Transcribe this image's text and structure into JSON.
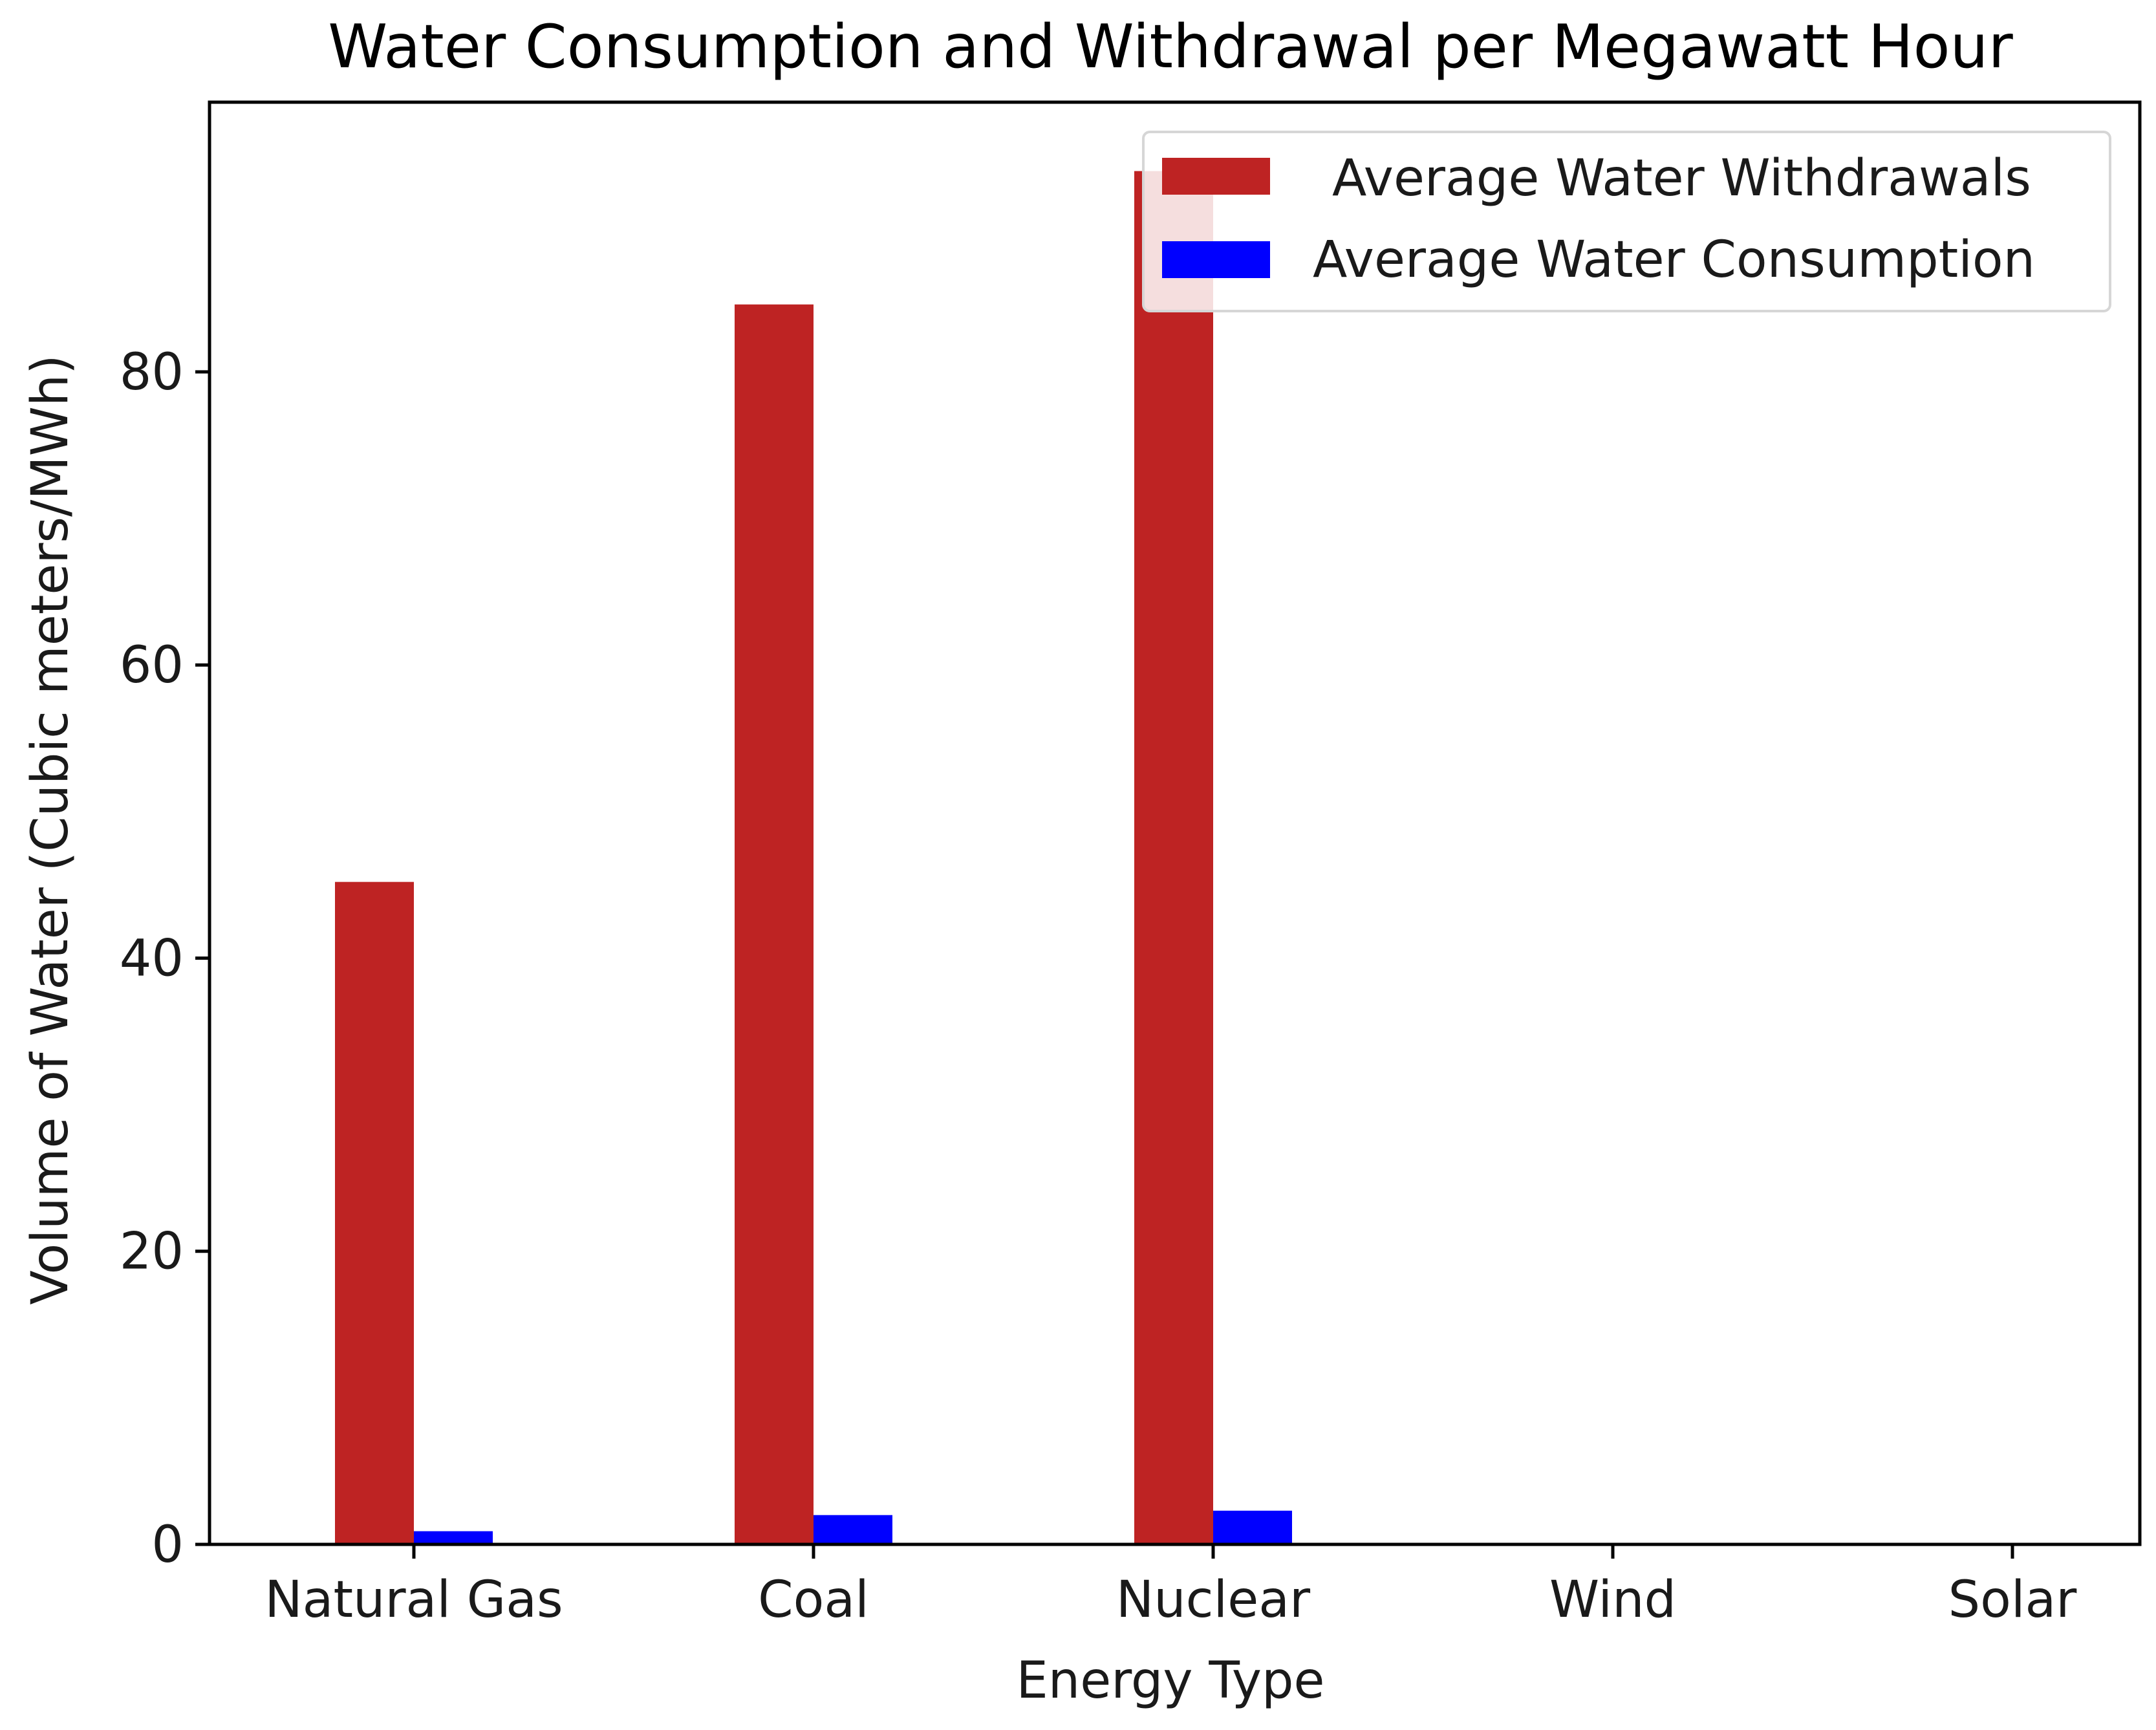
{
  "chart_data": {
    "type": "bar",
    "title": "Water Consumption and Withdrawal per Megawatt Hour",
    "xlabel": "Energy Type",
    "ylabel": "Volume of Water (Cubic meters/MWh)",
    "categories": [
      "Natural Gas",
      "Coal",
      "Nuclear",
      "Wind",
      "Solar"
    ],
    "series": [
      {
        "name": "Average Water Withdrawals",
        "color": "#be2323",
        "values": [
          45.2,
          84.6,
          93.7,
          0,
          0
        ]
      },
      {
        "name": "Average Water Consumption",
        "color": "#0000ff",
        "values": [
          0.9,
          2.0,
          2.3,
          0,
          0
        ]
      }
    ],
    "yticks": [
      0,
      20,
      40,
      60,
      80
    ],
    "ylim": [
      0,
      98.4
    ],
    "grid": false,
    "legend_position": "top-right"
  }
}
